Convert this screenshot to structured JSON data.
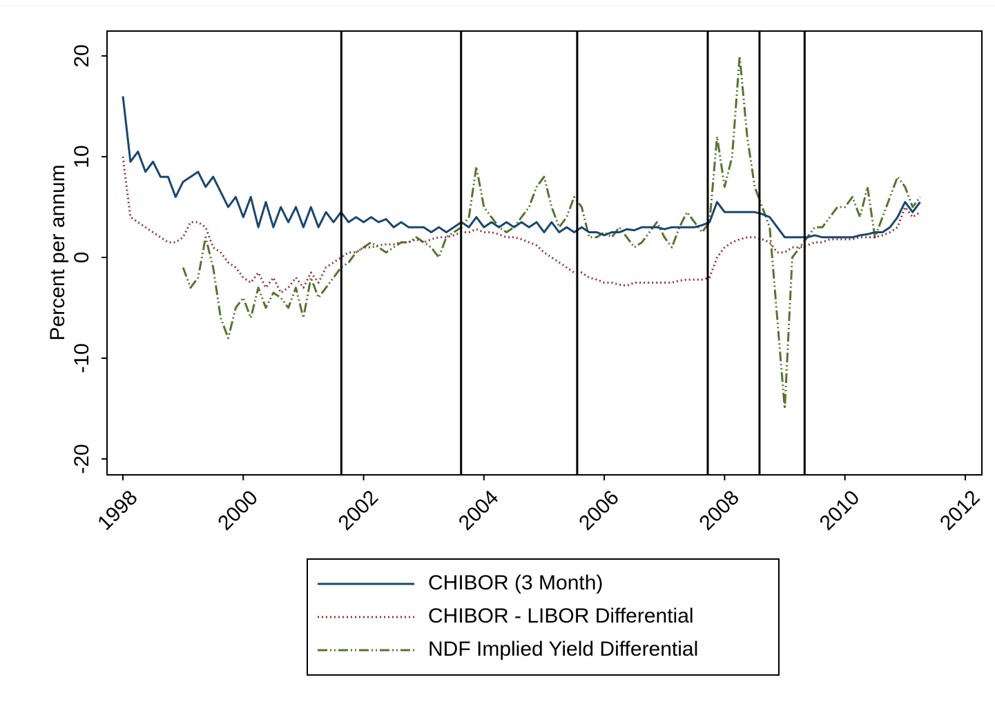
{
  "chart_data": {
    "type": "line",
    "y_label": "Percent per annum",
    "xlim": [
      1997.736,
      2012.276
    ],
    "ylim": [
      -21.58,
      22.47
    ],
    "xticks": [
      1998,
      2000,
      2002,
      2004,
      2006,
      2008,
      2010,
      2012
    ],
    "yticks": [
      -20,
      -10,
      0,
      10,
      20
    ],
    "event_lines": [
      2001.63,
      2003.62,
      2005.55,
      2007.72,
      2008.58,
      2009.33
    ],
    "event_color": "#000000",
    "legend": "bottom",
    "x": [
      1998.0,
      1998.125,
      1998.25,
      1998.375,
      1998.5,
      1998.625,
      1998.75,
      1998.875,
      1999.0,
      1999.125,
      1999.25,
      1999.375,
      1999.5,
      1999.625,
      1999.75,
      1999.875,
      2000.0,
      2000.125,
      2000.25,
      2000.375,
      2000.5,
      2000.625,
      2000.75,
      2000.875,
      2001.0,
      2001.125,
      2001.25,
      2001.375,
      2001.5,
      2001.625,
      2001.75,
      2001.875,
      2002.0,
      2002.125,
      2002.25,
      2002.375,
      2002.5,
      2002.625,
      2002.75,
      2002.875,
      2003.0,
      2003.125,
      2003.25,
      2003.375,
      2003.5,
      2003.625,
      2003.75,
      2003.875,
      2004.0,
      2004.125,
      2004.25,
      2004.375,
      2004.5,
      2004.625,
      2004.75,
      2004.875,
      2005.0,
      2005.125,
      2005.25,
      2005.375,
      2005.5,
      2005.625,
      2005.75,
      2005.875,
      2006.0,
      2006.125,
      2006.25,
      2006.375,
      2006.5,
      2006.625,
      2006.75,
      2006.875,
      2007.0,
      2007.125,
      2007.25,
      2007.375,
      2007.5,
      2007.625,
      2007.75,
      2007.875,
      2008.0,
      2008.125,
      2008.25,
      2008.375,
      2008.5,
      2008.625,
      2008.75,
      2008.875,
      2009.0,
      2009.125,
      2009.25,
      2009.375,
      2009.5,
      2009.625,
      2009.75,
      2009.875,
      2010.0,
      2010.125,
      2010.25,
      2010.375,
      2010.5,
      2010.625,
      2010.75,
      2010.875,
      2011.0,
      2011.125,
      2011.25
    ],
    "series": [
      {
        "name": "CHIBOR (3 Month)",
        "color": "#1a476f",
        "dash": "solid",
        "values": [
          16,
          9.5,
          10.5,
          8.5,
          9.5,
          8,
          8,
          6,
          7.5,
          8,
          8.5,
          7,
          8,
          6.5,
          5,
          6,
          4,
          6,
          3,
          5.5,
          3,
          5,
          3.5,
          5,
          3,
          5,
          3,
          4.5,
          3.5,
          4.5,
          3.5,
          4,
          3.5,
          4,
          3.5,
          3.8,
          3,
          3.5,
          3,
          3,
          3,
          2.5,
          3,
          2.5,
          3,
          3.5,
          3,
          4,
          3,
          3.5,
          3,
          3.5,
          3,
          3.5,
          3,
          3.5,
          2.5,
          3.5,
          2.5,
          3,
          2.5,
          3,
          2.5,
          2.5,
          2.2,
          2.5,
          2.5,
          2.8,
          2.7,
          3,
          3,
          3,
          2.8,
          3,
          3,
          3,
          3,
          3.2,
          3.5,
          5.5,
          4.5,
          4.5,
          4.5,
          4.5,
          4.5,
          4.3,
          4,
          3,
          2,
          2,
          2,
          2,
          2.2,
          2,
          2,
          2,
          2,
          2,
          2.2,
          2.3,
          2.5,
          2.5,
          3,
          4,
          5.5,
          4.5,
          5.5
        ]
      },
      {
        "name": "CHIBOR - LIBOR Differential",
        "color": "#90353b",
        "dash": "dotted",
        "values": [
          10,
          4,
          3.5,
          3,
          2.5,
          2,
          1.5,
          1.5,
          2,
          3.5,
          3.5,
          3,
          1,
          0.5,
          -0.5,
          -1,
          -2,
          -2.5,
          -1.5,
          -3,
          -2,
          -3.5,
          -3,
          -2,
          -3,
          -1.5,
          -2.5,
          -1,
          -0.5,
          0,
          0.5,
          0.5,
          1,
          1,
          1.2,
          1.3,
          1.3,
          1.5,
          1.5,
          1.8,
          1.5,
          1.8,
          2,
          2,
          2.2,
          2.5,
          2.5,
          2.8,
          2.5,
          2.5,
          2.3,
          2,
          2,
          1.8,
          1.5,
          1.2,
          0.5,
          0,
          -0.5,
          -1,
          -1.5,
          -1.5,
          -2,
          -2.2,
          -2.5,
          -2.5,
          -2.7,
          -2.8,
          -2.5,
          -2.5,
          -2.5,
          -2.5,
          -2.5,
          -2.5,
          -2.3,
          -2.2,
          -2.2,
          -2.2,
          -2,
          0,
          1,
          1.5,
          1.8,
          2,
          2,
          1.8,
          1.5,
          0.5,
          0.5,
          1,
          1,
          1.2,
          1.5,
          1.5,
          1.8,
          1.8,
          1.8,
          1.8,
          2,
          2,
          2,
          2.2,
          2.5,
          3,
          5,
          4,
          4.5
        ]
      },
      {
        "name": "NDF Implied Yield Differential",
        "color": "#55752f",
        "dash": "dashdotdot",
        "values": [
          null,
          null,
          null,
          null,
          null,
          null,
          null,
          null,
          -1,
          -3,
          -2,
          2,
          -1,
          -6,
          -8,
          -5,
          -4,
          -6,
          -3,
          -5,
          -3.5,
          -4,
          -5,
          -3,
          -6,
          -2,
          -4,
          -3,
          -2,
          -1,
          -0.5,
          0.5,
          1,
          1.5,
          1,
          0.5,
          1,
          1.5,
          1.5,
          2,
          1.5,
          1,
          0,
          2,
          2.5,
          3,
          4,
          9,
          5,
          4,
          3,
          2.5,
          3,
          4,
          5,
          7,
          8,
          5,
          3,
          4,
          6,
          5,
          2,
          2,
          2.5,
          2,
          3,
          2,
          1,
          1.5,
          2.5,
          3.5,
          2,
          1,
          3,
          4.5,
          3.5,
          2.5,
          3.5,
          12,
          7,
          10,
          20,
          12,
          7,
          5,
          3,
          -6,
          -15,
          0,
          1,
          2,
          3,
          3,
          4,
          5,
          5,
          6,
          4,
          7,
          2,
          4,
          6,
          8,
          7,
          5,
          6
        ]
      }
    ]
  }
}
